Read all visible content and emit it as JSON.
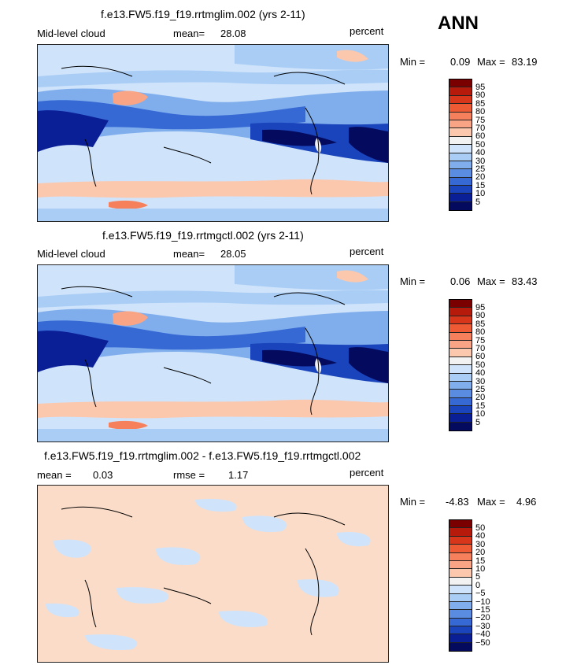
{
  "season": "ANN",
  "panels": [
    {
      "title": "f.e13.FW5.f19_f19.rrtmglim.002 (yrs 2-11)",
      "left_label": "Mid-level cloud",
      "stat_label": "mean=",
      "stat_value": "28.08",
      "stat2_label": "",
      "stat2_value": "",
      "units": "percent",
      "min_label": "Min =",
      "min_value": "0.09",
      "max_label": "Max =",
      "max_value": "83.19",
      "colorbar_levels": [
        "95",
        "90",
        "85",
        "80",
        "75",
        "70",
        "60",
        "50",
        "40",
        "30",
        "25",
        "20",
        "15",
        "10",
        "5"
      ],
      "colorbar_colors": [
        "#7a0000",
        "#b51a0a",
        "#d8361a",
        "#ee5a34",
        "#f7805c",
        "#f9a484",
        "#fbc8ae",
        "#f2f2f2",
        "#cfe4fb",
        "#aacdf5",
        "#80aeec",
        "#5a8de1",
        "#3669d3",
        "#1a44bb",
        "#0a1f96",
        "#040a5e"
      ]
    },
    {
      "title": "f.e13.FW5.f19_f19.rrtmgctl.002 (yrs 2-11)",
      "left_label": "Mid-level cloud",
      "stat_label": "mean=",
      "stat_value": "28.05",
      "stat2_label": "",
      "stat2_value": "",
      "units": "percent",
      "min_label": "Min =",
      "min_value": "0.06",
      "max_label": "Max =",
      "max_value": "83.43",
      "colorbar_levels": [
        "95",
        "90",
        "85",
        "80",
        "75",
        "70",
        "60",
        "50",
        "40",
        "30",
        "25",
        "20",
        "15",
        "10",
        "5"
      ],
      "colorbar_colors": [
        "#7a0000",
        "#b51a0a",
        "#d8361a",
        "#ee5a34",
        "#f7805c",
        "#f9a484",
        "#fbc8ae",
        "#f2f2f2",
        "#cfe4fb",
        "#aacdf5",
        "#80aeec",
        "#5a8de1",
        "#3669d3",
        "#1a44bb",
        "#0a1f96",
        "#040a5e"
      ]
    },
    {
      "title": "f.e13.FW5.f19_f19.rrtmglim.002 - f.e13.FW5.f19_f19.rrtmgctl.002",
      "left_label": "mean =",
      "stat_label": "0.03",
      "stat_value": "",
      "stat2_label": "rmse =",
      "stat2_value": "1.17",
      "units": "percent",
      "min_label": "Min =",
      "min_value": "-4.83",
      "max_label": "Max =",
      "max_value": "4.96",
      "colorbar_levels": [
        "50",
        "40",
        "30",
        "20",
        "15",
        "10",
        "5",
        "0",
        "−5",
        "−10",
        "−15",
        "−20",
        "−30",
        "−40",
        "−50"
      ],
      "colorbar_colors": [
        "#7a0000",
        "#b51a0a",
        "#d8361a",
        "#ee5a34",
        "#f7805c",
        "#f9a484",
        "#fbc8ae",
        "#f2f2f2",
        "#cfe4fb",
        "#aacdf5",
        "#80aeec",
        "#5a8de1",
        "#3669d3",
        "#1a44bb",
        "#0a1f96",
        "#040a5e"
      ]
    }
  ]
}
